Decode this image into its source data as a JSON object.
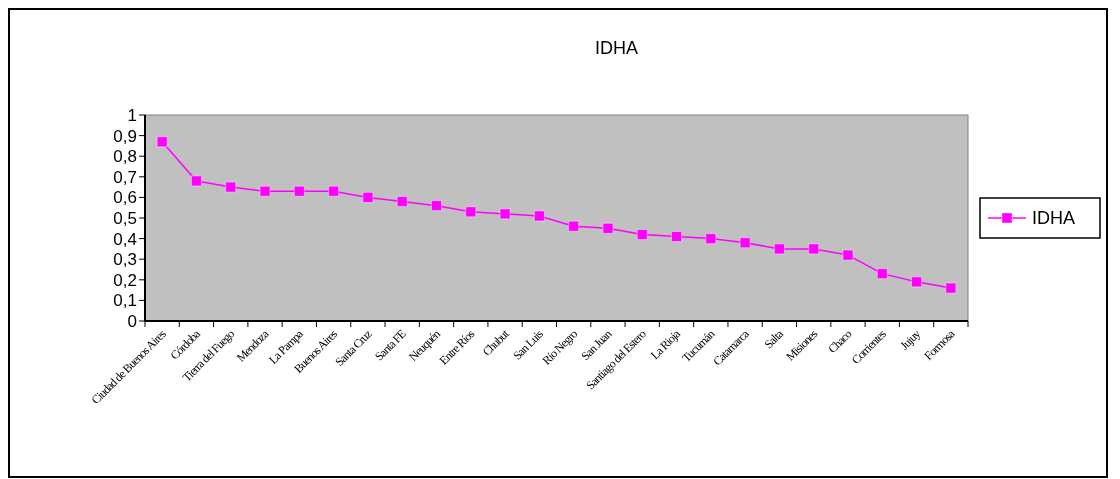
{
  "chart_data": {
    "type": "line",
    "title": "IDHA",
    "categories": [
      "Ciudad de Buenos Aires",
      "Córdoba",
      "Tierra del Fuego",
      "Mendoza",
      "La Pampa",
      "Buenos Aires",
      "Santa Cruz",
      "Santa FE",
      "Neuquén",
      "Entre Ríos",
      "Chubut",
      "San Luis",
      "Río Negro",
      "San Juan",
      "Santiago del Estero",
      "La Rioja",
      "Tucumán",
      "Catamarca",
      "Salta",
      "Misiones",
      "Chaco",
      "Corrientes",
      "Jujuy",
      "Formosa"
    ],
    "series": [
      {
        "name": "IDHA",
        "color": "#ff00ff",
        "values": [
          0.87,
          0.68,
          0.65,
          0.63,
          0.63,
          0.63,
          0.6,
          0.58,
          0.56,
          0.53,
          0.52,
          0.51,
          0.46,
          0.45,
          0.42,
          0.41,
          0.4,
          0.38,
          0.35,
          0.35,
          0.32,
          0.23,
          0.19,
          0.16
        ]
      }
    ],
    "ylim": [
      0,
      1
    ],
    "yticks": [
      {
        "value": 0,
        "label": "0"
      },
      {
        "value": 0.1,
        "label": "0,1"
      },
      {
        "value": 0.2,
        "label": "0,2"
      },
      {
        "value": 0.3,
        "label": "0,3"
      },
      {
        "value": 0.4,
        "label": "0,4"
      },
      {
        "value": 0.5,
        "label": "0,5"
      },
      {
        "value": 0.6,
        "label": "0,6"
      },
      {
        "value": 0.7,
        "label": "0,7"
      },
      {
        "value": 0.8,
        "label": "0,8"
      },
      {
        "value": 0.9,
        "label": "0,9"
      },
      {
        "value": 1,
        "label": "1"
      }
    ],
    "grid": false,
    "legend": "right",
    "marker": "square",
    "line_style": "solid"
  }
}
